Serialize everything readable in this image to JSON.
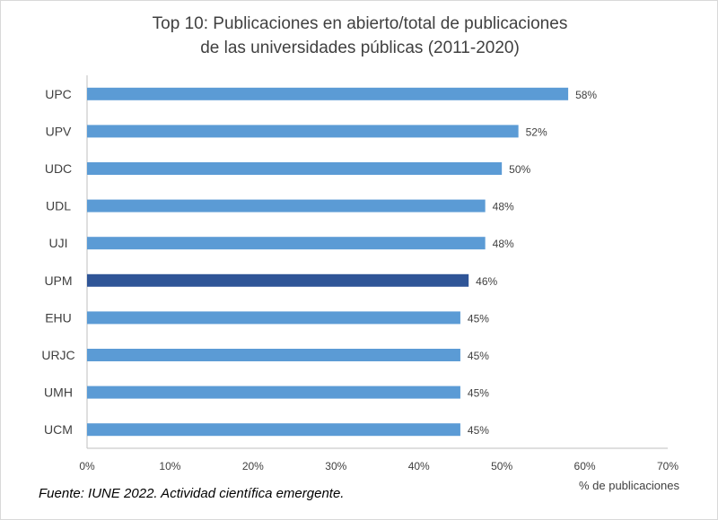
{
  "chart_data": {
    "type": "bar",
    "orientation": "horizontal",
    "title_lines": [
      "Top 10: Publicaciones en abierto/total de publicaciones",
      "de las universidades públicas (2011-2020)"
    ],
    "categories": [
      "UPC",
      "UPV",
      "UDC",
      "UDL",
      "UJI",
      "UPM",
      "EHU",
      "URJC",
      "UMH",
      "UCM"
    ],
    "values": [
      58,
      52,
      50,
      48,
      48,
      46,
      45,
      45,
      45,
      45
    ],
    "data_labels": [
      "58%",
      "52%",
      "50%",
      "48%",
      "48%",
      "46%",
      "45%",
      "45%",
      "45%",
      "45%"
    ],
    "highlight_category": "UPM",
    "xlabel": "% de publicaciones",
    "ylabel": "",
    "xlim": [
      0,
      70
    ],
    "xticks": [
      "0%",
      "10%",
      "20%",
      "30%",
      "40%",
      "50%",
      "60%",
      "70%"
    ],
    "grid": false,
    "colors": {
      "bar": "#5b9bd5",
      "highlight": "#2f5597",
      "text": "#404040"
    }
  },
  "source": "Fuente: IUNE 2022.  Actividad científica emergente."
}
